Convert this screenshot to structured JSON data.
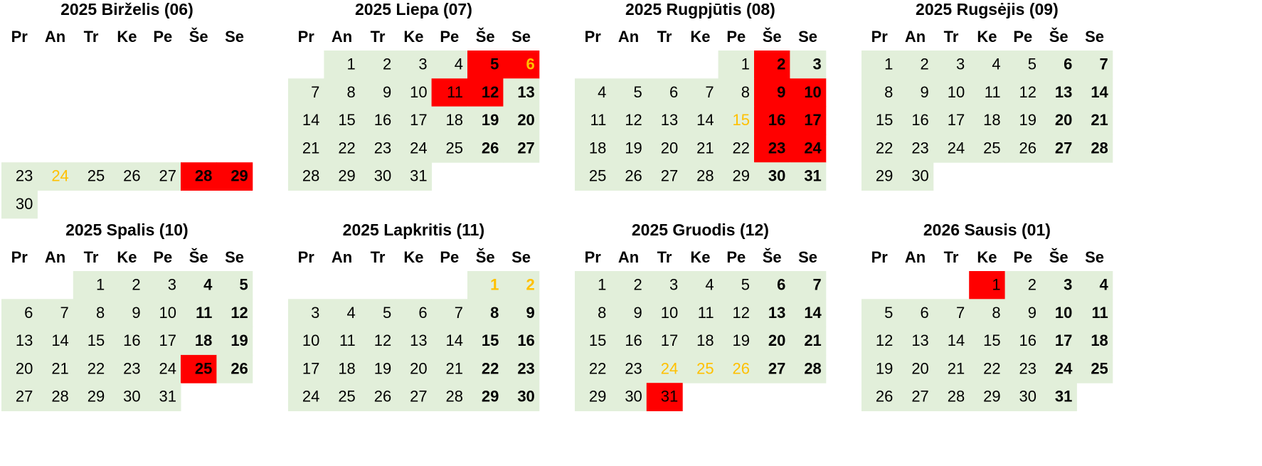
{
  "weekdays": [
    "Pr",
    "An",
    "Tr",
    "Ke",
    "Pe",
    "Še",
    "Se"
  ],
  "colors": {
    "fill": "#e2efda",
    "red": "#ff0000",
    "orange": "#ffc000"
  },
  "months": [
    {
      "title": "2025 Birželis (06)",
      "red_days": [
        28,
        29
      ],
      "orange_days": [
        24
      ],
      "weeks": [
        [
          null,
          null,
          null,
          null,
          null,
          null,
          null
        ],
        [
          null,
          null,
          null,
          null,
          null,
          null,
          null
        ],
        [
          null,
          null,
          null,
          null,
          null,
          null,
          null
        ],
        [
          null,
          null,
          null,
          null,
          null,
          null,
          null
        ],
        [
          23,
          24,
          25,
          26,
          27,
          28,
          29
        ],
        [
          30,
          null,
          null,
          null,
          null,
          null,
          null
        ]
      ]
    },
    {
      "title": "2025 Liepa (07)",
      "red_days": [
        5,
        6,
        11,
        12
      ],
      "orange_days": [
        6
      ],
      "weeks": [
        [
          null,
          1,
          2,
          3,
          4,
          5,
          6
        ],
        [
          7,
          8,
          9,
          10,
          11,
          12,
          13
        ],
        [
          14,
          15,
          16,
          17,
          18,
          19,
          20
        ],
        [
          21,
          22,
          23,
          24,
          25,
          26,
          27
        ],
        [
          28,
          29,
          30,
          31,
          null,
          null,
          null
        ]
      ]
    },
    {
      "title": "2025 Rugpjūtis (08)",
      "red_days": [
        2,
        9,
        10,
        16,
        17,
        23,
        24
      ],
      "orange_days": [
        15
      ],
      "weeks": [
        [
          null,
          null,
          null,
          null,
          1,
          2,
          3
        ],
        [
          4,
          5,
          6,
          7,
          8,
          9,
          10
        ],
        [
          11,
          12,
          13,
          14,
          15,
          16,
          17
        ],
        [
          18,
          19,
          20,
          21,
          22,
          23,
          24
        ],
        [
          25,
          26,
          27,
          28,
          29,
          30,
          31
        ]
      ]
    },
    {
      "title": "2025 Rugsėjis (09)",
      "red_days": [],
      "orange_days": [],
      "weeks": [
        [
          1,
          2,
          3,
          4,
          5,
          6,
          7
        ],
        [
          8,
          9,
          10,
          11,
          12,
          13,
          14
        ],
        [
          15,
          16,
          17,
          18,
          19,
          20,
          21
        ],
        [
          22,
          23,
          24,
          25,
          26,
          27,
          28
        ],
        [
          29,
          30,
          null,
          null,
          null,
          null,
          null
        ]
      ]
    },
    {
      "title": "2025 Spalis (10)",
      "red_days": [
        25
      ],
      "orange_days": [],
      "weeks": [
        [
          null,
          null,
          1,
          2,
          3,
          4,
          5
        ],
        [
          6,
          7,
          8,
          9,
          10,
          11,
          12
        ],
        [
          13,
          14,
          15,
          16,
          17,
          18,
          19
        ],
        [
          20,
          21,
          22,
          23,
          24,
          25,
          26
        ],
        [
          27,
          28,
          29,
          30,
          31,
          null,
          null
        ]
      ]
    },
    {
      "title": "2025 Lapkritis (11)",
      "red_days": [],
      "orange_days": [
        1,
        2
      ],
      "weeks": [
        [
          null,
          null,
          null,
          null,
          null,
          1,
          2
        ],
        [
          3,
          4,
          5,
          6,
          7,
          8,
          9
        ],
        [
          10,
          11,
          12,
          13,
          14,
          15,
          16
        ],
        [
          17,
          18,
          19,
          20,
          21,
          22,
          23
        ],
        [
          24,
          25,
          26,
          27,
          28,
          29,
          30
        ]
      ]
    },
    {
      "title": "2025 Gruodis (12)",
      "red_days": [
        31
      ],
      "orange_days": [
        24,
        25,
        26
      ],
      "weeks": [
        [
          1,
          2,
          3,
          4,
          5,
          6,
          7
        ],
        [
          8,
          9,
          10,
          11,
          12,
          13,
          14
        ],
        [
          15,
          16,
          17,
          18,
          19,
          20,
          21
        ],
        [
          22,
          23,
          24,
          25,
          26,
          27,
          28
        ],
        [
          29,
          30,
          31,
          null,
          null,
          null,
          null
        ]
      ]
    },
    {
      "title": "2026 Sausis (01)",
      "red_days": [
        1
      ],
      "orange_days": [],
      "weeks": [
        [
          null,
          null,
          null,
          1,
          2,
          3,
          4
        ],
        [
          5,
          6,
          7,
          8,
          9,
          10,
          11
        ],
        [
          12,
          13,
          14,
          15,
          16,
          17,
          18
        ],
        [
          19,
          20,
          21,
          22,
          23,
          24,
          25
        ],
        [
          26,
          27,
          28,
          29,
          30,
          31,
          null
        ]
      ]
    }
  ]
}
